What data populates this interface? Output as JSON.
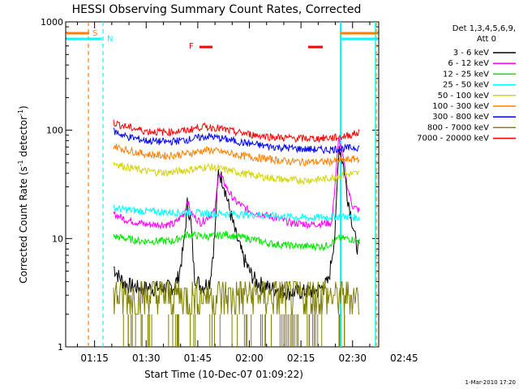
{
  "chart_data": {
    "type": "line",
    "title": "HESSI Observing Summary Count Rates, Corrected",
    "xlabel": "Start Time (10-Dec-07 01:09:22)",
    "ylabel_main": "Corrected Count Rate (s",
    "ylabel_sup1": "-1",
    "ylabel_mid": " detector",
    "ylabel_sup2": "-1",
    "ylabel_end": ")",
    "y_scale": "log",
    "ylim": [
      1,
      1000
    ],
    "y_ticks": [
      {
        "value": 1,
        "label": "1"
      },
      {
        "value": 10,
        "label": "10"
      },
      {
        "value": 100,
        "label": "100"
      },
      {
        "value": 1000,
        "label": "1000"
      }
    ],
    "xlim_min": [
      6.6,
      97.6
    ],
    "x_ticks": [
      {
        "value": 15,
        "label": "01:15"
      },
      {
        "value": 30,
        "label": "01:30"
      },
      {
        "value": 45,
        "label": "01:45"
      },
      {
        "value": 60,
        "label": "02:00"
      },
      {
        "value": 75,
        "label": "02:15"
      },
      {
        "value": 90,
        "label": "02:30"
      },
      {
        "value": 105,
        "label": "02:45"
      }
    ],
    "legend_header_1": "Det 1,3,4,5,6,9,",
    "legend_header_2": "Att 0",
    "legend_placement": "right",
    "series": [
      {
        "name": "3 - 6 keV",
        "color": "#000000",
        "points": [
          [
            20.5,
            5.5
          ],
          [
            22,
            4.5
          ],
          [
            24,
            3.8
          ],
          [
            28,
            3.5
          ],
          [
            34,
            3.5
          ],
          [
            38,
            3.6
          ],
          [
            39.5,
            4.5
          ],
          [
            41,
            9
          ],
          [
            42,
            22
          ],
          [
            43,
            14
          ],
          [
            44,
            4.5
          ],
          [
            46,
            3.6
          ],
          [
            48.5,
            4
          ],
          [
            50,
            11
          ],
          [
            51,
            42
          ],
          [
            52.5,
            33
          ],
          [
            54,
            20
          ],
          [
            56,
            11
          ],
          [
            58,
            7
          ],
          [
            60,
            5
          ],
          [
            62,
            4
          ],
          [
            66,
            3.5
          ],
          [
            72,
            3.2
          ],
          [
            80,
            3.3
          ],
          [
            83,
            4
          ],
          [
            85,
            12
          ],
          [
            86,
            75
          ],
          [
            87.5,
            45
          ],
          [
            88.5,
            25
          ],
          [
            90,
            14
          ],
          [
            91,
            9
          ],
          [
            92,
            8
          ]
        ]
      },
      {
        "name": "6 - 12 keV",
        "color": "#ff00ff",
        "points": [
          [
            20.5,
            17
          ],
          [
            24,
            15
          ],
          [
            30,
            13.5
          ],
          [
            38,
            13.5
          ],
          [
            41,
            17
          ],
          [
            42,
            23
          ],
          [
            43,
            17
          ],
          [
            46,
            14
          ],
          [
            50,
            18
          ],
          [
            51,
            40
          ],
          [
            52.5,
            34
          ],
          [
            54,
            27
          ],
          [
            56,
            22
          ],
          [
            60,
            18
          ],
          [
            66,
            16
          ],
          [
            72,
            14
          ],
          [
            78,
            13.5
          ],
          [
            84,
            14
          ],
          [
            85,
            35
          ],
          [
            86,
            85
          ],
          [
            87.5,
            50
          ],
          [
            88.5,
            30
          ],
          [
            90,
            20
          ],
          [
            92,
            18
          ]
        ]
      },
      {
        "name": "12 - 25 keV",
        "color": "#00e600",
        "points": [
          [
            20.5,
            10.5
          ],
          [
            28,
            9.5
          ],
          [
            38,
            9.5
          ],
          [
            42,
            11
          ],
          [
            46,
            10.5
          ],
          [
            50,
            10.5
          ],
          [
            53,
            11
          ],
          [
            56,
            10.5
          ],
          [
            60,
            10
          ],
          [
            66,
            9
          ],
          [
            74,
            8.5
          ],
          [
            82,
            8.5
          ],
          [
            86,
            10
          ],
          [
            89,
            10
          ],
          [
            92,
            9.5
          ]
        ]
      },
      {
        "name": "25 - 50 keV",
        "color": "#00ffff",
        "points": [
          [
            20.5,
            19
          ],
          [
            28,
            18
          ],
          [
            36,
            17.5
          ],
          [
            42,
            17.5
          ],
          [
            48,
            17
          ],
          [
            54,
            17
          ],
          [
            62,
            16.5
          ],
          [
            70,
            16
          ],
          [
            78,
            15.5
          ],
          [
            84,
            16
          ],
          [
            88,
            16
          ],
          [
            92,
            15.5
          ]
        ]
      },
      {
        "name": "50 - 100 keV",
        "color": "#d4d400",
        "points": [
          [
            20.5,
            50
          ],
          [
            24,
            46
          ],
          [
            30,
            42
          ],
          [
            36,
            40.5
          ],
          [
            42,
            43
          ],
          [
            48,
            46
          ],
          [
            52,
            44
          ],
          [
            58,
            40
          ],
          [
            64,
            37
          ],
          [
            70,
            35
          ],
          [
            76,
            34.5
          ],
          [
            82,
            35.5
          ],
          [
            88,
            39
          ],
          [
            92,
            40
          ]
        ]
      },
      {
        "name": "100 - 300 keV",
        "color": "#ff8000",
        "points": [
          [
            20.5,
            72
          ],
          [
            24,
            66
          ],
          [
            30,
            60
          ],
          [
            36,
            58
          ],
          [
            42,
            61
          ],
          [
            48,
            66
          ],
          [
            52,
            63
          ],
          [
            58,
            58
          ],
          [
            64,
            55
          ],
          [
            70,
            52
          ],
          [
            76,
            51
          ],
          [
            82,
            51
          ],
          [
            88,
            53
          ],
          [
            92,
            55
          ]
        ]
      },
      {
        "name": "300 - 800 keV",
        "color": "#0000ff",
        "points": [
          [
            20.5,
            98
          ],
          [
            24,
            88
          ],
          [
            30,
            80
          ],
          [
            36,
            78
          ],
          [
            42,
            82
          ],
          [
            48,
            88
          ],
          [
            52,
            84
          ],
          [
            58,
            77
          ],
          [
            64,
            72
          ],
          [
            70,
            69
          ],
          [
            76,
            67
          ],
          [
            82,
            66
          ],
          [
            88,
            68
          ],
          [
            92,
            70
          ]
        ]
      },
      {
        "name": "800 - 7000 keV",
        "color": "#808000",
        "points": [
          [
            20.5,
            2.8
          ],
          [
            92,
            2.8
          ]
        ]
      },
      {
        "name": "7000 - 20000 keV",
        "color": "#ff0000",
        "points": [
          [
            20.5,
            118
          ],
          [
            24,
            108
          ],
          [
            30,
            98
          ],
          [
            36,
            96
          ],
          [
            42,
            100
          ],
          [
            46,
            108
          ],
          [
            50,
            106
          ],
          [
            56,
            96
          ],
          [
            62,
            90
          ],
          [
            68,
            86
          ],
          [
            74,
            84
          ],
          [
            80,
            84
          ],
          [
            86,
            86
          ],
          [
            92,
            95
          ]
        ]
      }
    ],
    "flags": [
      {
        "label": "S",
        "color": "#ff8000"
      },
      {
        "label": "N",
        "color": "#00ffff"
      },
      {
        "label": "F",
        "color": "#ff0000"
      }
    ],
    "timestamp": "1-Mar-2010 17:20"
  }
}
